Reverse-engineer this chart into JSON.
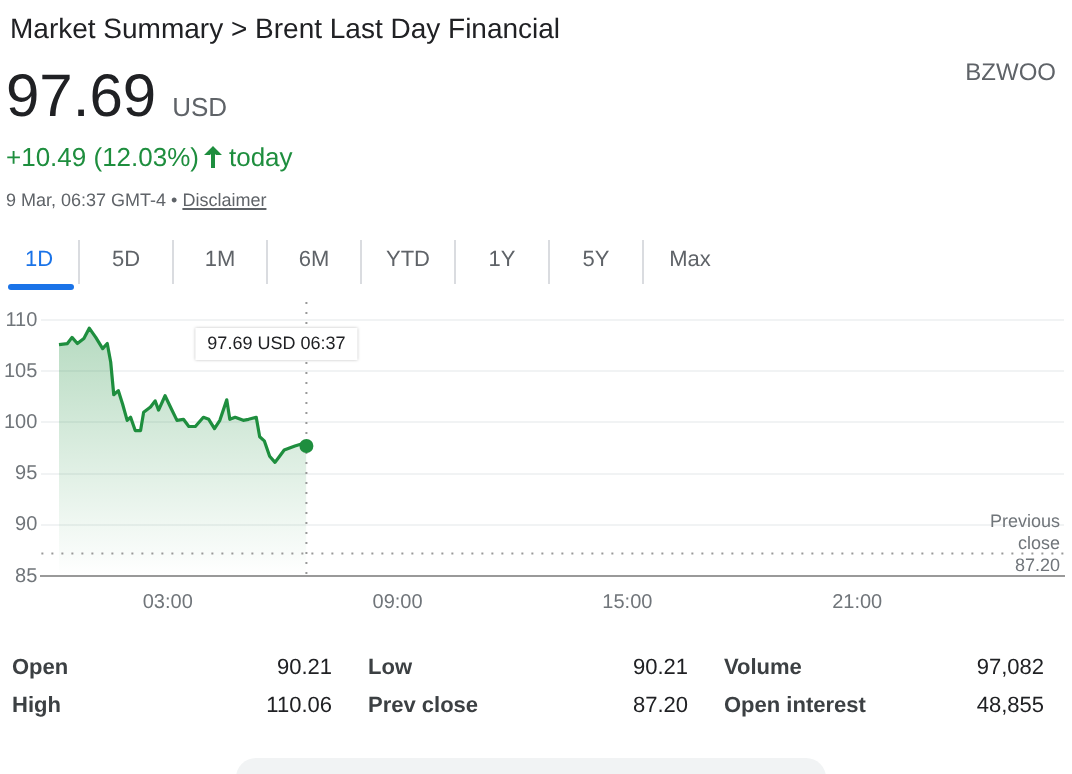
{
  "chart_data": {
    "type": "area",
    "title": "Market Summary > Brent Last Day Financial",
    "x": [
      0.16,
      0.38,
      0.5,
      0.64,
      0.81,
      0.95,
      1.12,
      1.3,
      1.42,
      1.51,
      1.59,
      1.71,
      1.82,
      1.94,
      2.03,
      2.15,
      2.29,
      2.37,
      2.55,
      2.67,
      2.76,
      2.93,
      3.07,
      3.24,
      3.41,
      3.55,
      3.72,
      3.93,
      4.07,
      4.22,
      4.36,
      4.54,
      4.62,
      4.76,
      4.97,
      5.11,
      5.31,
      5.4,
      5.52,
      5.66,
      5.8,
      5.92,
      6.04,
      6.18,
      6.32,
      6.49,
      6.62
    ],
    "series": [
      {
        "color": "#1e8e3e",
        "values": [
          107.6,
          107.7,
          108.3,
          107.7,
          108.2,
          109.2,
          108.3,
          107.2,
          107.7,
          105.9,
          102.7,
          103.1,
          101.8,
          100.2,
          100.5,
          99.2,
          99.2,
          101.0,
          101.5,
          102.1,
          101.2,
          102.6,
          101.5,
          100.2,
          100.3,
          99.6,
          99.6,
          100.5,
          100.3,
          99.4,
          100.2,
          102.2,
          100.3,
          100.5,
          100.2,
          100.3,
          100.5,
          98.6,
          98.2,
          96.7,
          96.1,
          96.7,
          97.3,
          97.5,
          97.7,
          97.9,
          97.69
        ]
      }
    ],
    "xlim": [
      -0.3,
      26.4
    ],
    "xticks": [
      {
        "value": 3,
        "label": "03:00"
      },
      {
        "value": 9,
        "label": "09:00"
      },
      {
        "value": 15,
        "label": "15:00"
      },
      {
        "value": 21,
        "label": "21:00"
      }
    ],
    "ylim": [
      85,
      110
    ],
    "yticks": [
      85,
      90,
      95,
      100,
      105,
      110
    ],
    "grid": "y",
    "legend": false,
    "marker": "none",
    "line_style": "solid",
    "ref_lines": [
      {
        "axis": "y",
        "value": 87.2,
        "label": "Previous close 87.20",
        "line_style": "dotted"
      },
      {
        "axis": "x",
        "value": 6.62,
        "line_style": "dotted"
      }
    ],
    "annotations": [
      "97.69",
      "USD",
      "+10.49 (12.03%)",
      "today",
      "9 Mar, 06:37 GMT-4 •",
      "Disclaimer",
      "BZWOO",
      "1D",
      "5D",
      "1M",
      "6M",
      "YTD",
      "1Y",
      "5Y",
      "Max",
      "97.69 USD 06:37",
      "Open",
      "90.21",
      "High",
      "110.06",
      "Low",
      "90.21",
      "Prev close",
      "87.20",
      "Volume",
      "97,082",
      "Open interest",
      "48,855"
    ]
  }
}
